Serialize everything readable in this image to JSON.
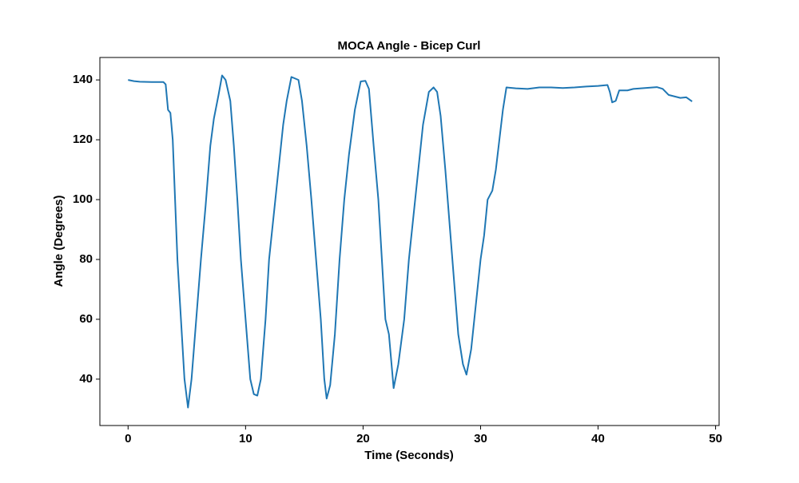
{
  "chart_data": {
    "type": "line",
    "title": "MOCA Angle - Bicep Curl",
    "x_label": "Time (Seconds)",
    "y_label": "Angle (Degrees)",
    "x": [
      0,
      0.5,
      1,
      2,
      3,
      3.2,
      3.4,
      3.6,
      3.8,
      4.0,
      4.2,
      4.5,
      4.8,
      5.1,
      5.4,
      5.8,
      6.2,
      6.6,
      7.0,
      7.3,
      7.7,
      8.0,
      8.3,
      8.7,
      9.0,
      9.3,
      9.6,
      10.0,
      10.4,
      10.7,
      11.0,
      11.3,
      11.7,
      12.0,
      12.4,
      12.8,
      13.2,
      13.5,
      13.9,
      14.2,
      14.5,
      14.8,
      15.2,
      15.6,
      16.0,
      16.4,
      16.7,
      16.9,
      17.2,
      17.6,
      18.0,
      18.4,
      18.8,
      19.3,
      19.8,
      20.2,
      20.5,
      20.9,
      21.3,
      21.6,
      21.9,
      22.2,
      22.6,
      23.0,
      23.5,
      23.9,
      24.3,
      24.7,
      25.1,
      25.6,
      26.0,
      26.3,
      26.6,
      27.0,
      27.4,
      27.8,
      28.1,
      28.5,
      28.8,
      29.2,
      29.6,
      30.0,
      30.3,
      30.6,
      31.0,
      31.3,
      31.6,
      31.9,
      32.2,
      33,
      34,
      35,
      36,
      37,
      38,
      39,
      40,
      40.8,
      41.0,
      41.2,
      41.5,
      41.8,
      42.5,
      43,
      44,
      45,
      45.5,
      46,
      46.5,
      47,
      47.5,
      48
    ],
    "values": [
      140,
      139.6,
      139.4,
      139.3,
      139.3,
      138.5,
      130,
      129,
      120,
      100,
      80,
      60,
      40,
      30.5,
      40,
      60,
      80,
      98,
      118,
      127,
      135,
      141.5,
      140,
      133,
      118,
      100,
      80,
      60,
      40,
      35,
      34.5,
      40,
      60,
      80,
      95,
      110,
      125,
      133,
      141,
      140.5,
      140,
      133,
      118,
      100,
      80,
      60,
      40,
      33.5,
      38,
      55,
      80,
      100,
      115,
      130,
      139.5,
      139.7,
      137,
      118,
      100,
      80,
      60,
      55,
      37,
      45,
      60,
      80,
      95,
      110,
      125,
      136,
      137.5,
      136,
      128,
      110,
      90,
      70,
      55,
      45,
      41.5,
      50,
      65,
      80,
      88,
      100,
      103,
      110,
      120,
      130,
      137.5,
      137.2,
      137,
      137.5,
      137.5,
      137.3,
      137.5,
      137.8,
      138,
      138.3,
      136,
      132.5,
      133,
      136.5,
      136.5,
      137,
      137.3,
      137.6,
      137,
      135,
      134.5,
      134,
      134.2,
      132.8
    ],
    "color": "#1f77b4",
    "xlim": [
      -2.4,
      50.3
    ],
    "ylim": [
      24.5,
      147.5
    ],
    "xticks": [
      0,
      10,
      20,
      30,
      40,
      50
    ],
    "yticks": [
      40,
      60,
      80,
      100,
      120,
      140
    ]
  }
}
